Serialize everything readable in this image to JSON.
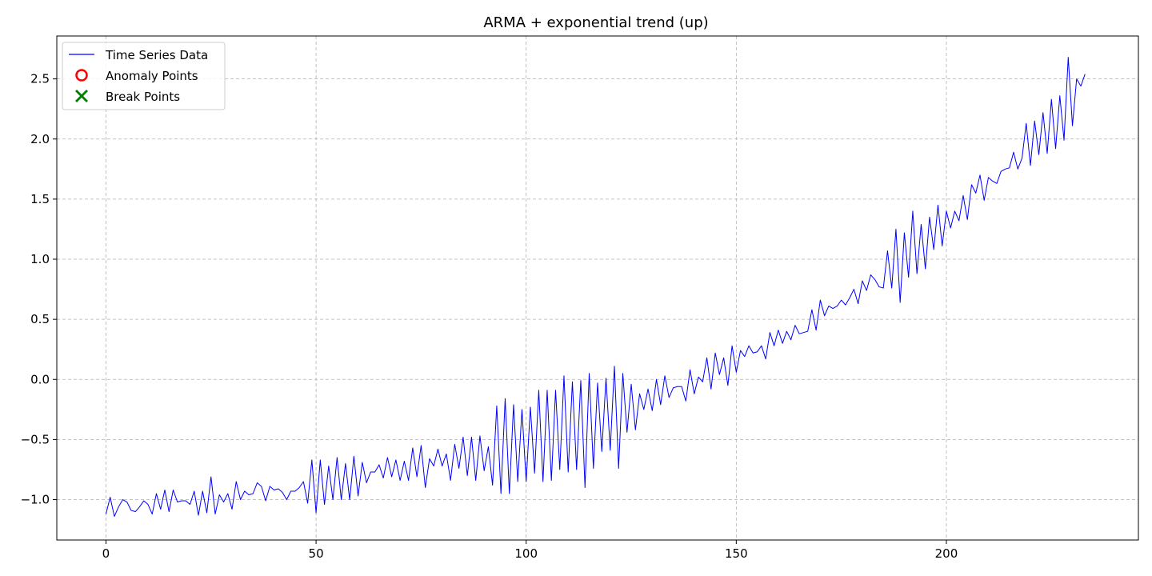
{
  "colors": {
    "series": "#0000ff",
    "anomaly": "#ff0000",
    "break": "#008000",
    "grid": "#b0b0b0"
  },
  "chart_data": {
    "type": "line",
    "title": "ARMA + exponential trend (up)",
    "xlabel": "",
    "ylabel": "",
    "xlim": [
      -11.7,
      245.7
    ],
    "ylim": [
      -1.336,
      2.857
    ],
    "xticks": [
      0,
      50,
      100,
      150,
      200
    ],
    "yticks": [
      -1.0,
      -0.5,
      0.0,
      0.5,
      1.0,
      1.5,
      2.0,
      2.5
    ],
    "xtick_labels": [
      "0",
      "50",
      "100",
      "150",
      "200"
    ],
    "ytick_labels": [
      "−1.0",
      "−0.5",
      "0.0",
      "0.5",
      "1.0",
      "1.5",
      "2.0",
      "2.5"
    ],
    "grid": true,
    "grid_style": "dashed",
    "legend": {
      "position": "top-left",
      "entries": [
        "Time Series Data",
        "Anomaly Points",
        "Break Points"
      ]
    },
    "series": [
      {
        "name": "Time Series Data",
        "color": "#0000ff",
        "x_start": 0,
        "x_step": 1,
        "values": [
          -1.12,
          -0.98,
          -1.14,
          -1.06,
          -1.0,
          -1.02,
          -1.09,
          -1.1,
          -1.06,
          -1.01,
          -1.04,
          -1.12,
          -0.95,
          -1.08,
          -0.92,
          -1.1,
          -0.92,
          -1.02,
          -1.01,
          -1.01,
          -1.04,
          -0.93,
          -1.13,
          -0.93,
          -1.11,
          -0.81,
          -1.12,
          -0.96,
          -1.02,
          -0.95,
          -1.08,
          -0.85,
          -1.0,
          -0.93,
          -0.96,
          -0.95,
          -0.86,
          -0.89,
          -1.01,
          -0.89,
          -0.92,
          -0.91,
          -0.94,
          -1.0,
          -0.93,
          -0.93,
          -0.9,
          -0.85,
          -1.03,
          -0.67,
          -1.11,
          -0.67,
          -1.04,
          -0.72,
          -1.0,
          -0.65,
          -1.0,
          -0.7,
          -1.0,
          -0.64,
          -0.97,
          -0.69,
          -0.86,
          -0.77,
          -0.77,
          -0.71,
          -0.82,
          -0.65,
          -0.81,
          -0.67,
          -0.84,
          -0.68,
          -0.84,
          -0.57,
          -0.81,
          -0.55,
          -0.9,
          -0.66,
          -0.72,
          -0.58,
          -0.72,
          -0.62,
          -0.84,
          -0.54,
          -0.74,
          -0.48,
          -0.8,
          -0.48,
          -0.84,
          -0.47,
          -0.76,
          -0.56,
          -0.88,
          -0.22,
          -0.95,
          -0.16,
          -0.95,
          -0.21,
          -0.85,
          -0.25,
          -0.85,
          -0.23,
          -0.78,
          -0.09,
          -0.85,
          -0.09,
          -0.84,
          -0.09,
          -0.75,
          0.03,
          -0.77,
          -0.02,
          -0.75,
          -0.01,
          -0.9,
          0.05,
          -0.74,
          -0.03,
          -0.6,
          0.01,
          -0.59,
          0.11,
          -0.74,
          0.05,
          -0.44,
          -0.04,
          -0.42,
          -0.12,
          -0.25,
          -0.08,
          -0.26,
          0.0,
          -0.21,
          0.03,
          -0.15,
          -0.07,
          -0.06,
          -0.06,
          -0.18,
          0.08,
          -0.12,
          0.02,
          -0.02,
          0.18,
          -0.08,
          0.22,
          0.04,
          0.18,
          -0.05,
          0.28,
          0.06,
          0.24,
          0.19,
          0.28,
          0.22,
          0.23,
          0.28,
          0.17,
          0.39,
          0.28,
          0.41,
          0.3,
          0.4,
          0.33,
          0.45,
          0.38,
          0.39,
          0.4,
          0.58,
          0.41,
          0.66,
          0.53,
          0.61,
          0.59,
          0.61,
          0.66,
          0.62,
          0.68,
          0.75,
          0.63,
          0.82,
          0.74,
          0.87,
          0.83,
          0.77,
          0.76,
          1.07,
          0.76,
          1.25,
          0.64,
          1.22,
          0.85,
          1.4,
          0.88,
          1.29,
          0.92,
          1.35,
          1.08,
          1.45,
          1.11,
          1.4,
          1.26,
          1.4,
          1.32,
          1.53,
          1.33,
          1.62,
          1.55,
          1.7,
          1.49,
          1.68,
          1.65,
          1.63,
          1.73,
          1.75,
          1.76,
          1.89,
          1.75,
          1.84,
          2.13,
          1.78,
          2.15,
          1.87,
          2.22,
          1.88,
          2.33,
          1.92,
          2.36,
          1.99,
          2.68,
          2.11,
          2.5,
          2.44,
          2.54
        ]
      },
      {
        "name": "Anomaly Points",
        "color": "#ff0000",
        "values": []
      },
      {
        "name": "Break Points",
        "color": "#008000",
        "values": []
      }
    ]
  }
}
